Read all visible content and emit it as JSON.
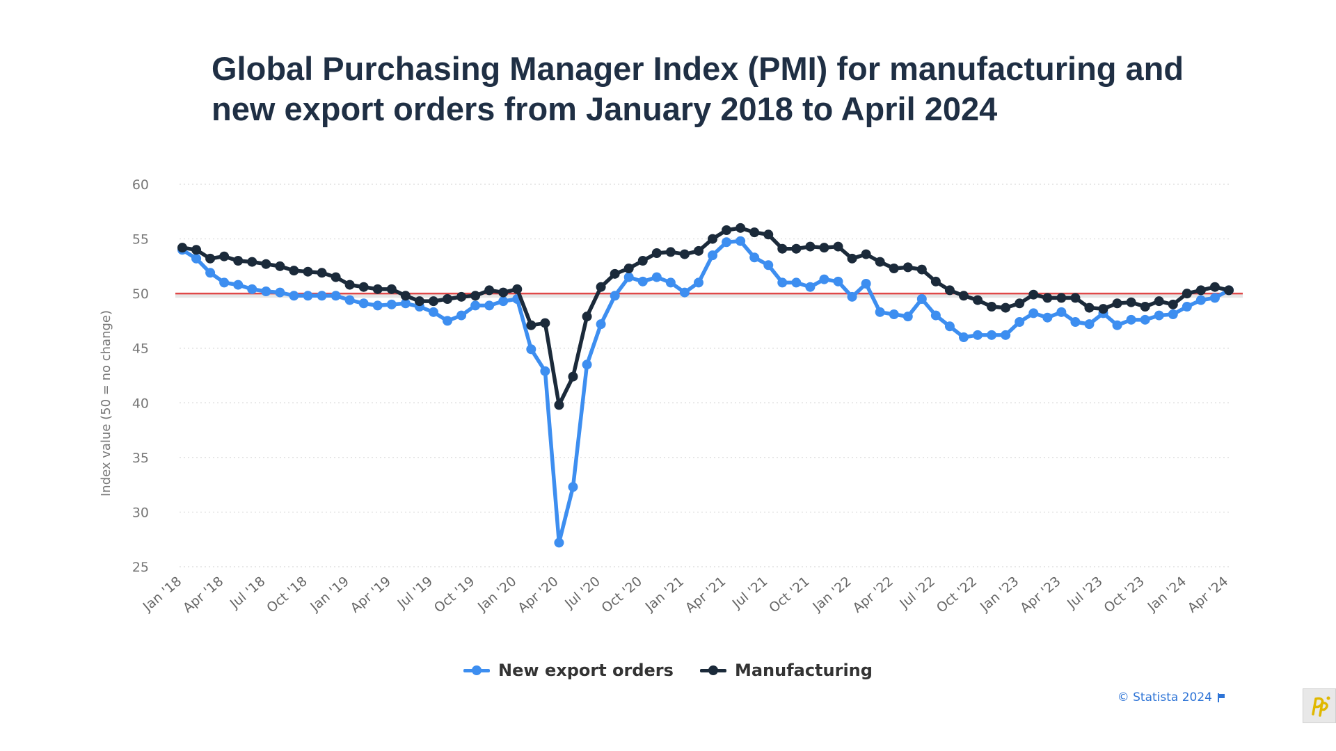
{
  "page": {
    "title": "Global Purchasing Manager Index (PMI) for manufacturing and new export orders from January 2018 to April 2024",
    "credit": "© Statista 2024",
    "logo_icon": "pp-logo-icon"
  },
  "colors": {
    "new_export_orders": "#3d8ef0",
    "manufacturing": "#1b2a3a",
    "reference_line": "#e04848",
    "grid": "#d9d9d9",
    "credit": "#2e74d6"
  },
  "chart_data": {
    "type": "line",
    "title": "Global Purchasing Manager Index (PMI) for manufacturing and new export orders from January 2018 to April 2024",
    "xlabel": "",
    "ylabel": "Index value (50 = no change)",
    "ylim": [
      25,
      60
    ],
    "yticks": [
      60,
      55,
      50,
      45,
      40,
      35,
      30,
      25
    ],
    "grid": true,
    "legend_position": "bottom",
    "reference_line": 50,
    "x_tick_labels": [
      "Jan '18",
      "Apr '18",
      "Jul '18",
      "Oct '18",
      "Jan '19",
      "Apr '19",
      "Jul '19",
      "Oct '19",
      "Jan '20",
      "Apr '20",
      "Jul '20",
      "Oct '20",
      "Jan '21",
      "Apr '21",
      "Jul '21",
      "Oct '21",
      "Jan '22",
      "Apr '22",
      "Jul '22",
      "Oct '22",
      "Jan '23",
      "Apr '23",
      "Jul '23",
      "Oct '23",
      "Jan '24",
      "Apr '24"
    ],
    "x_tick_every": 3,
    "series": [
      {
        "name": "New export orders",
        "color": "#3d8ef0",
        "values": [
          54.0,
          53.2,
          51.9,
          51.0,
          50.8,
          50.4,
          50.2,
          50.1,
          49.8,
          49.8,
          49.8,
          49.8,
          49.4,
          49.1,
          48.9,
          49.0,
          49.1,
          48.8,
          48.3,
          47.5,
          48.0,
          48.9,
          48.9,
          49.3,
          49.5,
          44.9,
          42.9,
          27.2,
          32.3,
          43.5,
          47.2,
          49.8,
          51.5,
          51.1,
          51.5,
          51.0,
          50.1,
          51.0,
          53.5,
          54.7,
          54.8,
          53.3,
          52.6,
          51.0,
          51.0,
          50.6,
          51.3,
          51.1,
          49.7,
          50.9,
          48.3,
          48.1,
          47.9,
          49.5,
          48.0,
          47.0,
          46.0,
          46.2,
          46.2,
          46.2,
          47.4,
          48.2,
          47.8,
          48.3,
          47.4,
          47.2,
          48.2,
          47.1,
          47.6,
          47.6,
          48.0,
          48.1,
          48.8,
          49.4,
          49.6,
          50.3
        ]
      },
      {
        "name": "Manufacturing",
        "color": "#1b2a3a",
        "values": [
          54.2,
          54.0,
          53.2,
          53.4,
          53.0,
          52.9,
          52.7,
          52.5,
          52.1,
          52.0,
          51.9,
          51.5,
          50.8,
          50.6,
          50.4,
          50.4,
          49.8,
          49.3,
          49.3,
          49.5,
          49.7,
          49.8,
          50.3,
          50.1,
          50.4,
          47.1,
          47.3,
          39.8,
          42.4,
          47.9,
          50.6,
          51.8,
          52.3,
          53.0,
          53.7,
          53.8,
          53.6,
          53.9,
          55.0,
          55.8,
          56.0,
          55.6,
          55.4,
          54.1,
          54.1,
          54.3,
          54.2,
          54.3,
          53.2,
          53.6,
          52.9,
          52.3,
          52.4,
          52.2,
          51.1,
          50.3,
          49.8,
          49.4,
          48.8,
          48.7,
          49.1,
          49.9,
          49.6,
          49.6,
          49.6,
          48.7,
          48.6,
          49.1,
          49.2,
          48.8,
          49.3,
          49.0,
          50.0,
          50.3,
          50.6,
          50.3
        ]
      }
    ]
  }
}
